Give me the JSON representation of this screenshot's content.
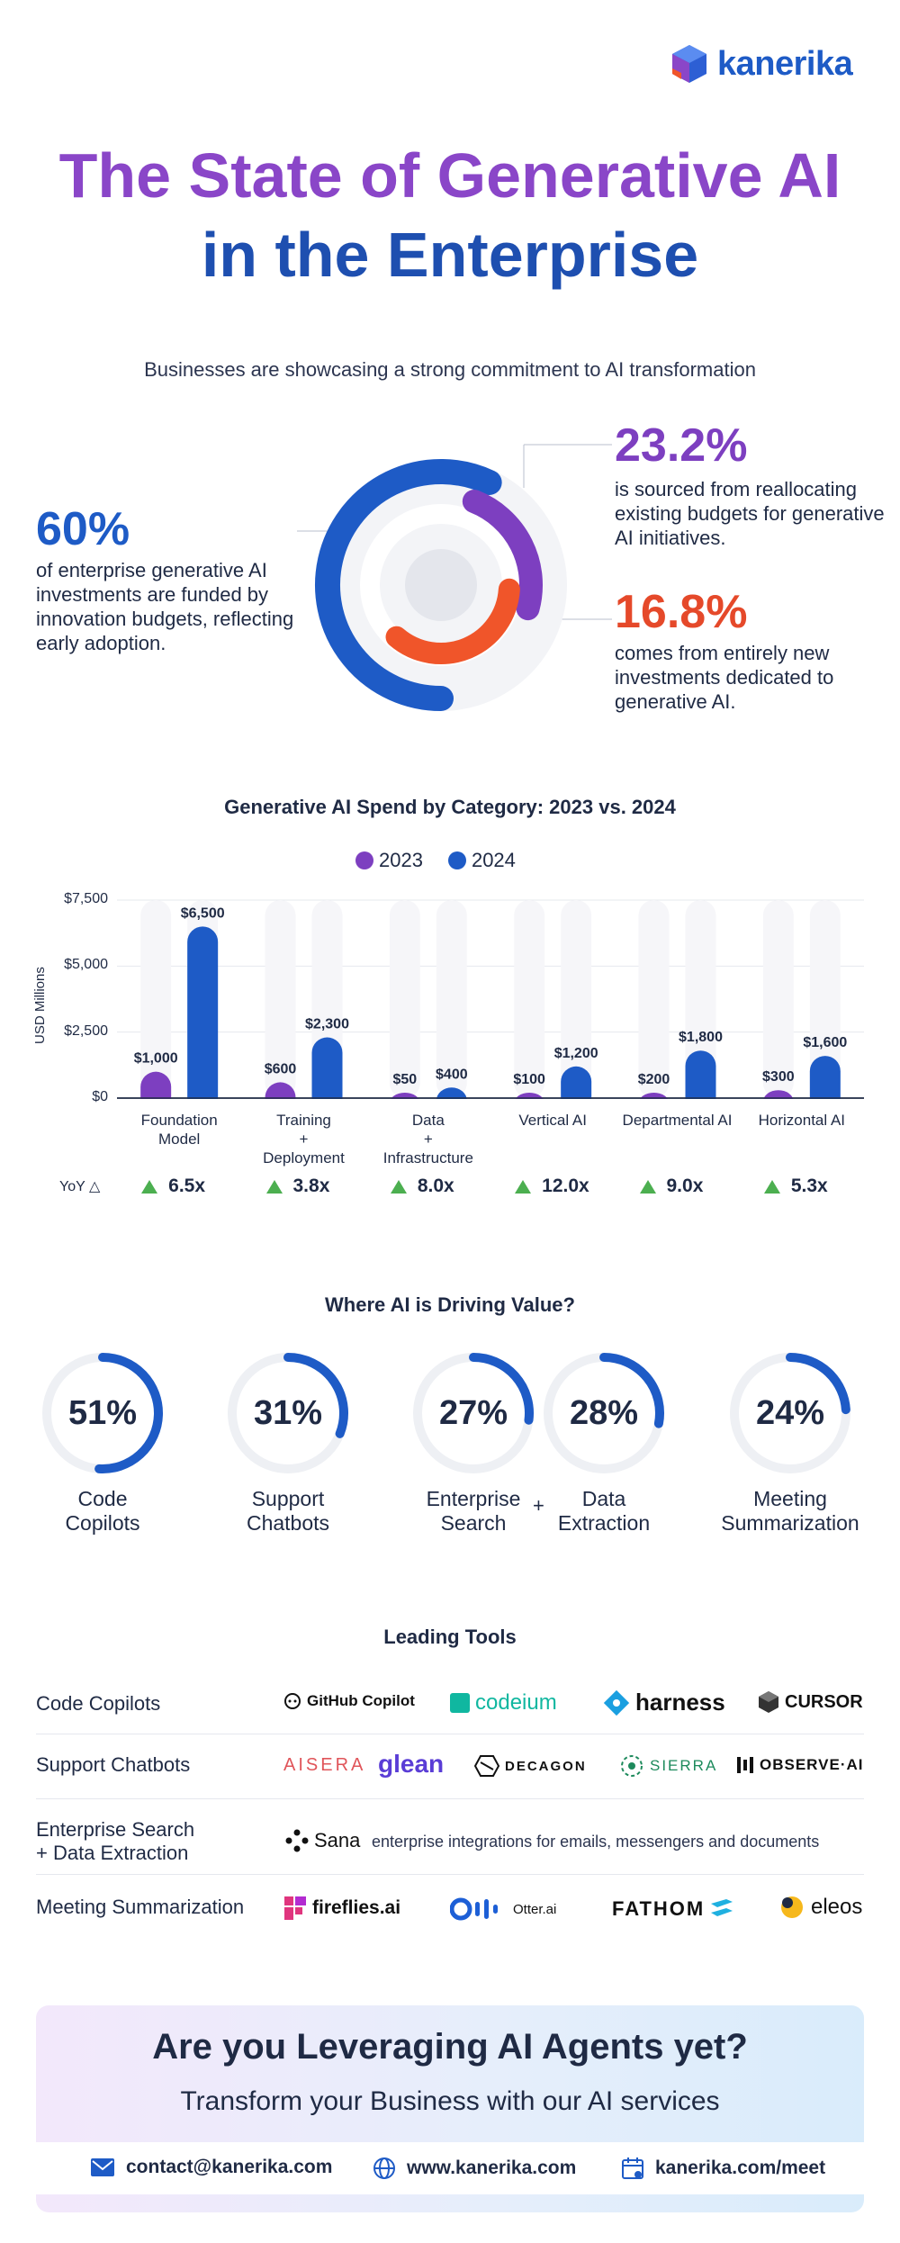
{
  "brand": {
    "name": "kanerika"
  },
  "header": {
    "title_line1": "The State of Generative AI",
    "title_line2": "in the Enterprise",
    "subtitle": "Businesses are showcasing a strong commitment to AI transformation"
  },
  "funding": {
    "left": {
      "value": "60%",
      "text": "of enterprise generative AI investments are funded by innovation budgets, reflecting early adoption.",
      "fraction": 0.6
    },
    "right_top": {
      "value": "23.2%",
      "text": "is sourced from reallocating existing budgets for generative AI initiatives.",
      "fraction": 0.232
    },
    "right_bottom": {
      "value": "16.8%",
      "text": "comes from entirely new investments dedicated to generative AI.",
      "fraction": 0.168
    },
    "colors": {
      "blue": "#1e5bc6",
      "purple": "#7d3fc0",
      "orange": "#f0552a"
    }
  },
  "chart_data": {
    "type": "bar",
    "title": "Generative AI Spend by Category: 2023 vs. 2024",
    "ylabel": "USD Millions",
    "ylim": [
      0,
      7500
    ],
    "yticks": [
      "$0",
      "$2,500",
      "$5,000",
      "$7,500"
    ],
    "ytick_values": [
      0,
      2500,
      5000,
      7500
    ],
    "grid": true,
    "legend_position": "top-center",
    "categories": [
      "Foundation Model",
      "Training + Deployment",
      "Data + Infrastructure",
      "Vertical AI",
      "Departmental AI",
      "Horizontal AI"
    ],
    "category_lines": [
      [
        "Foundation",
        "Model"
      ],
      [
        "Training",
        "+",
        "Deployment"
      ],
      [
        "Data",
        "+",
        "Infrastructure"
      ],
      [
        "Vertical AI"
      ],
      [
        "Departmental AI"
      ],
      [
        "Horizontal AI"
      ]
    ],
    "series": [
      {
        "name": "2023",
        "values": [
          1000,
          600,
          50,
          100,
          200,
          300
        ],
        "labels": [
          "$1,000",
          "$600",
          "$50",
          "$100",
          "$200",
          "$300"
        ],
        "color": "#7d3fc0"
      },
      {
        "name": "2024",
        "values": [
          6500,
          2300,
          400,
          1200,
          1800,
          1600
        ],
        "labels": [
          "$6,500",
          "$2,300",
          "$400",
          "$1,200",
          "$1,800",
          "$1,600"
        ],
        "color": "#1e5bc6"
      }
    ],
    "yoy_label": "YoY",
    "yoy": [
      "6.5x",
      "3.8x",
      "8.0x",
      "12.0x",
      "9.0x",
      "5.3x"
    ]
  },
  "value_section": {
    "title": "Where AI is Driving Value?",
    "plus": "+",
    "items": [
      {
        "pct": "51%",
        "fraction": 0.51,
        "lines": [
          "Code",
          "Copilots"
        ]
      },
      {
        "pct": "31%",
        "fraction": 0.31,
        "lines": [
          "Support",
          "Chatbots"
        ]
      },
      {
        "pct": "27%",
        "fraction": 0.27,
        "lines": [
          "Enterprise",
          "Search"
        ]
      },
      {
        "pct": "28%",
        "fraction": 0.28,
        "lines": [
          "Data",
          "Extraction"
        ]
      },
      {
        "pct": "24%",
        "fraction": 0.24,
        "lines": [
          "Meeting",
          "Summarization"
        ]
      }
    ]
  },
  "tools": {
    "title": "Leading Tools",
    "rows": [
      {
        "label": [
          "Code Copilots"
        ],
        "tools": [
          "GitHub Copilot",
          "codeium",
          "harness",
          "CURSOR"
        ]
      },
      {
        "label": [
          "Support Chatbots"
        ],
        "tools": [
          "AISERA",
          "glean",
          "DECAGON",
          "SIERRA",
          "OBSERVE·AI"
        ]
      },
      {
        "label": [
          "Enterprise Search",
          "+ Data Extraction"
        ],
        "tools": [
          "Sana"
        ],
        "note": "enterprise integrations for emails, messengers and documents"
      },
      {
        "label": [
          "Meeting Summarization"
        ],
        "tools": [
          "fireflies.ai",
          "Otter.ai",
          "FATHOM",
          "eleos"
        ]
      }
    ]
  },
  "cta": {
    "title": "Are you Leveraging AI Agents yet?",
    "subtitle": "Transform your Business with our AI services",
    "email": "contact@kanerika.com",
    "website": "www.kanerika.com",
    "meet": "kanerika.com/meet"
  }
}
